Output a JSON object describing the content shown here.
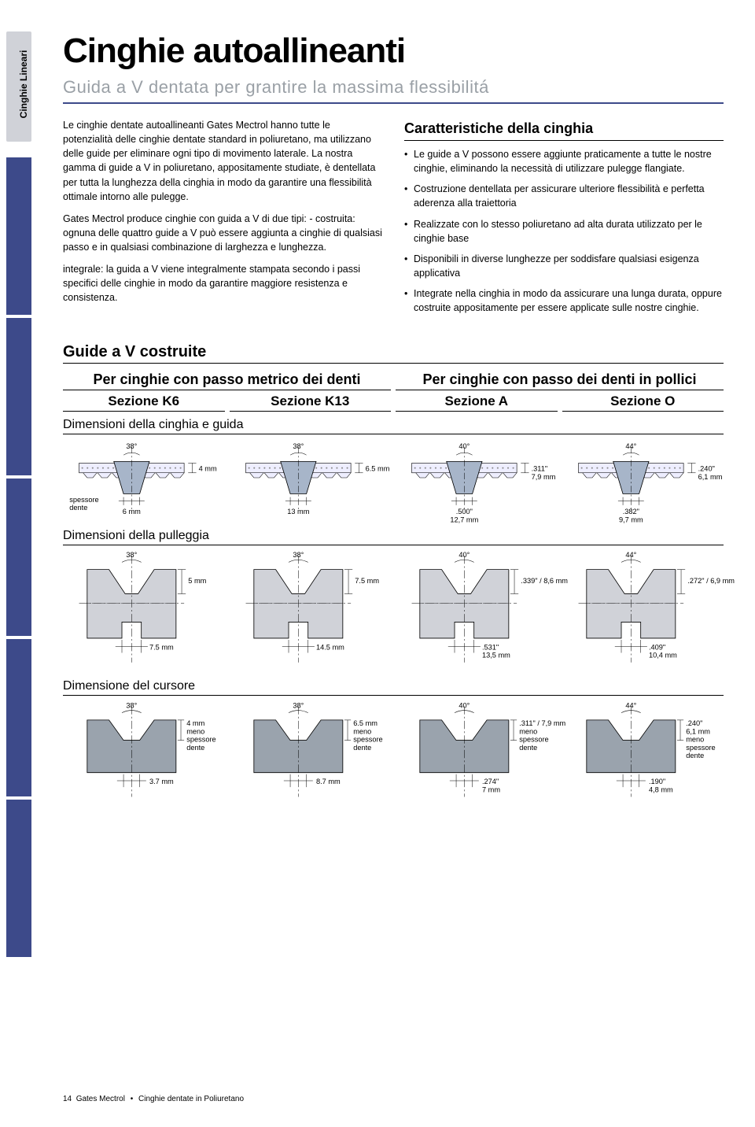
{
  "sidebar_label": "Cinghie Lineari",
  "title": "Cinghie autoallineanti",
  "subtitle": "Guida a V dentata per grantire la massima flessibilitá",
  "left_paragraphs": [
    "Le cinghie dentate autoallineanti Gates Mectrol hanno tutte le potenzialità delle cinghie dentate standard in poliuretano, ma utilizzano delle guide per eliminare ogni tipo di movimento laterale. La nostra gamma di guide a V in poliuretano, appositamente studiate, è dentellata per tutta la lunghezza della cinghia in modo da garantire una flessibilità ottimale intorno alle pulegge.",
    "Gates Mectrol produce cinghie con guida a V di due tipi: - costruita: ognuna delle quattro guide a V può essere aggiunta a cinghie di qualsiasi passo e in qualsiasi combinazione di larghezza e lunghezza.",
    "integrale: la guida a V viene integralmente stampata secondo i passi specifici delle cinghie in modo da garantire maggiore resistenza e consistenza."
  ],
  "right_heading": "Caratteristiche della cinghia",
  "right_bullets": [
    "Le guide a V possono essere aggiunte praticamente a tutte le nostre cinghie, eliminando la necessità di utilizzare pulegge flangiate.",
    "Costruzione dentellata per assicurare ulteriore flessibilità e perfetta aderenza alla traiettoria",
    "Realizzate con lo stesso poliuretano ad alta durata utilizzato per le cinghie base",
    "Disponibili in diverse lunghezze per soddisfare qualsiasi esigenza applicativa",
    "Integrate nella cinghia in modo da assicurare una lunga durata, oppure costruite appositamente per essere applicate sulle nostre cinghie."
  ],
  "guides_title": "Guide a V costruite",
  "group_metric": "Per cinghie con passo metrico dei denti",
  "group_inch": "Per cinghie con passo dei denti in pollici",
  "sections": {
    "k6": "Sezione K6",
    "k13": "Sezione K13",
    "a": "Sezione A",
    "o": "Sezione O"
  },
  "row_belt": "Dimensioni della cinghia e guida",
  "row_pulley": "Dimensioni della pulleggia",
  "row_slider": "Dimensione del cursore",
  "belt": {
    "k6": {
      "angle": "38°",
      "depth": "4 mm",
      "width": "6 mm",
      "note": "spessore\ndente"
    },
    "k13": {
      "angle": "38°",
      "depth": "6.5 mm",
      "width": "13 mm"
    },
    "a": {
      "angle": "40°",
      "depth": ".311\"\n7,9 mm",
      "width": ".500\"\n12,7 mm"
    },
    "o": {
      "angle": "44°",
      "depth": ".240\"\n6,1 mm",
      "width": ".382\"\n9,7 mm"
    }
  },
  "pulley": {
    "k6": {
      "angle": "38°",
      "top": "5 mm",
      "bottom": "7.5 mm"
    },
    "k13": {
      "angle": "38°",
      "top": "7.5 mm",
      "bottom": "14.5 mm"
    },
    "a": {
      "angle": "40°",
      "top": ".339\" / 8,6 mm",
      "bottom": ".531\"\n13,5 mm"
    },
    "o": {
      "angle": "44°",
      "top": ".272\" / 6,9 mm",
      "bottom": ".409\"\n10,4 mm"
    }
  },
  "slider": {
    "k6": {
      "angle": "38°",
      "top": "4 mm\nmeno\nspessore\ndente",
      "bottom": "3.7 mm"
    },
    "k13": {
      "angle": "38°",
      "top": "6.5 mm\nmeno\nspessore\ndente",
      "bottom": "8.7 mm"
    },
    "a": {
      "angle": "40°",
      "top": ".311\" / 7,9 mm\nmeno\nspessore\ndente",
      "bottom": ".274\"\n7 mm"
    },
    "o": {
      "angle": "44°",
      "top": ".240\"\n6,1 mm\nmeno\nspessore\ndente",
      "bottom": ".190\"\n4,8 mm"
    }
  },
  "colors": {
    "belt_fill": "#a7b5c9",
    "pulley_fill": "#d0d2d8",
    "line": "#000",
    "cord": "#888"
  },
  "footer": {
    "page": "14",
    "brand": "Gates Mectrol",
    "product": "Cinghie dentate in Poliuretano"
  }
}
